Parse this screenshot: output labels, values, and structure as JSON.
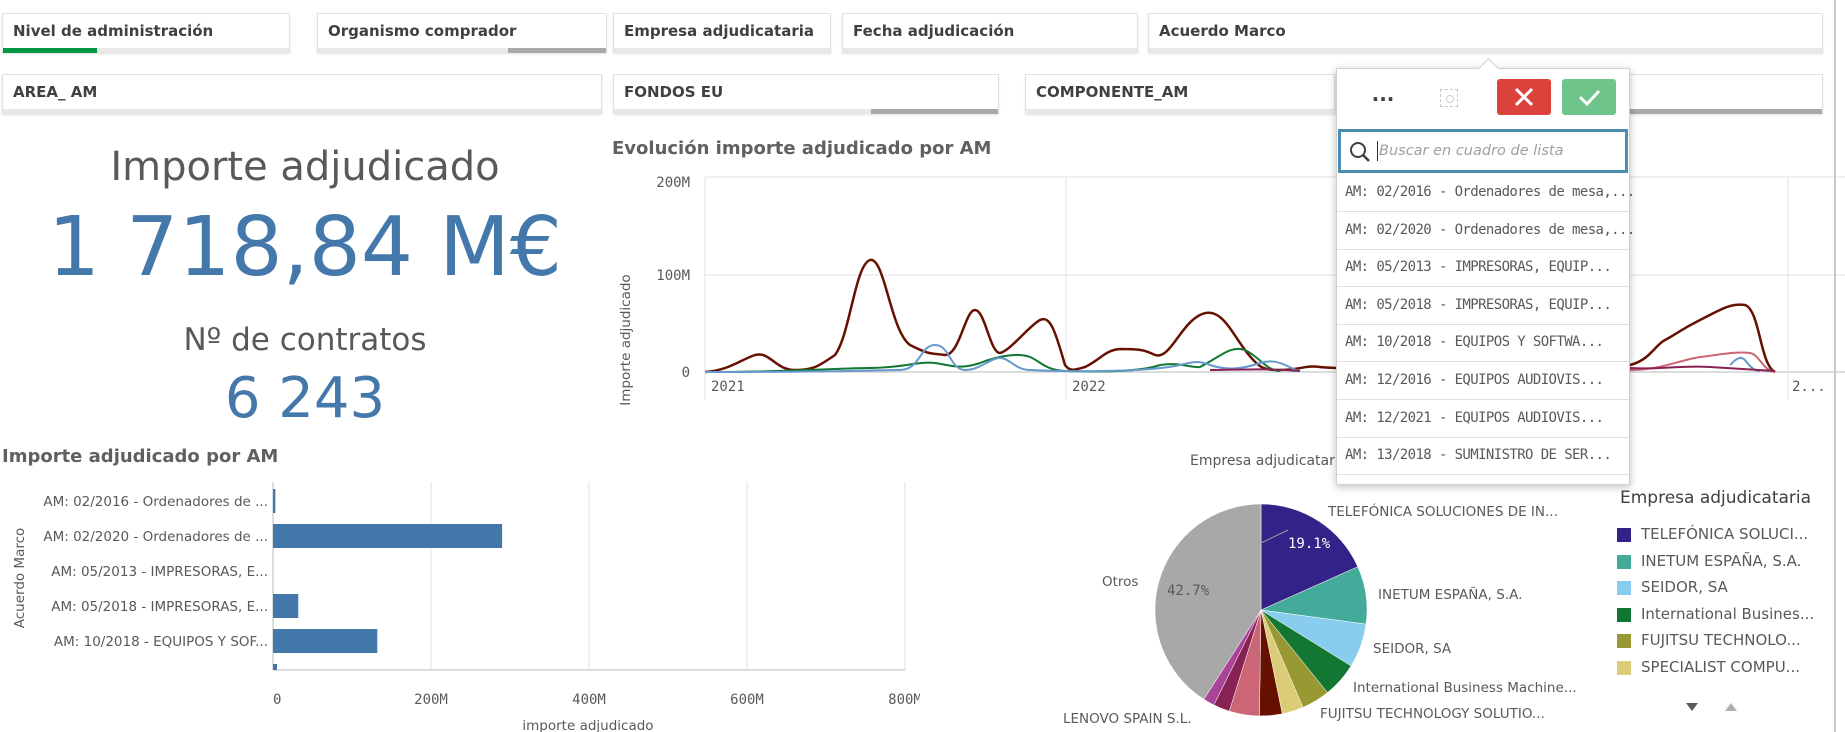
{
  "filters_row1": [
    {
      "label": "Nivel de administración",
      "green": 0.33,
      "gray": 0.0
    },
    {
      "label": "Organismo comprador",
      "green": 0.0,
      "gray": 0.34
    },
    {
      "label": "Empresa adjudicataria",
      "green": 0.0,
      "gray": 0.0
    },
    {
      "label": "Fecha adjudicación",
      "green": 0.0,
      "gray": 0.0
    },
    {
      "label": "Acuerdo Marco",
      "green": 0.0,
      "gray": 0.0
    }
  ],
  "filters_row2": [
    {
      "label": "AREA_ AM",
      "green": 0.0,
      "gray": 0.0
    },
    {
      "label": "FONDOS EU",
      "green": 0.0,
      "gray": 0.33
    },
    {
      "label": "COMPONENTE_AM",
      "green": 0.0,
      "gray": 0.0
    },
    {
      "label": "",
      "green": 0.0,
      "gray": 0.48
    }
  ],
  "kpis": {
    "importe_label": "Importe adjudicado",
    "importe_value": "1 718,84 M€",
    "contratos_label": "Nº de contratos",
    "contratos_value": "6 243"
  },
  "line_chart": {
    "title": "Evolución importe adjudicado por AM",
    "ylabel": "Importe adjudicado",
    "yticks": [
      "200M",
      "100M",
      "0"
    ],
    "xticks": [
      "2021",
      "2022",
      "2..."
    ]
  },
  "bar_chart": {
    "title": "Importe adjudicado por AM",
    "ylabel": "Acuerdo Marco",
    "xlabel": "importe adjudicado",
    "xticks": [
      "0",
      "200M",
      "400M",
      "600M",
      "800M"
    ]
  },
  "pie_chart": {
    "title": "Empresa adjudicataria",
    "labels": {
      "telefonica": "TELEFÓNICA SOLUCIONES DE IN...",
      "inetum": "INETUM ESPAÑA, S.A.",
      "seidor": "SEIDOR, SA",
      "ibm": "International Business Machine...",
      "fujitsu": "FUJITSU TECHNOLOGY SOLUTIO...",
      "lenovo": "LENOVO SPAIN S.L.",
      "otros": "Otros"
    },
    "pct_telefonica": "19.1%",
    "pct_otros": "42.7%",
    "legend_title": "Empresa adjudicataria",
    "legend": [
      {
        "label": "TELEFÓNICA SOLUCI...",
        "color": "#332288"
      },
      {
        "label": "INETUM ESPAÑA, S.A.",
        "color": "#44aa99"
      },
      {
        "label": "SEIDOR, SA",
        "color": "#88ccee"
      },
      {
        "label": "International Busines...",
        "color": "#117733"
      },
      {
        "label": "FUJITSU TECHNOLO...",
        "color": "#999933"
      },
      {
        "label": "SPECIALIST COMPU...",
        "color": "#ddcc77"
      }
    ]
  },
  "popup": {
    "more": "...",
    "search_placeholder": "Buscar en cuadro de lista",
    "items": [
      "AM: 02/2016 - Ordenadores de mesa,...",
      "AM: 02/2020 - Ordenadores de mesa,...",
      "AM: 05/2013 - IMPRESORAS, EQUIP...",
      "AM: 05/2018 - IMPRESORAS, EQUIP...",
      "AM: 10/2018 - EQUIPOS Y SOFTWA...",
      "AM: 12/2016 - EQUIPOS AUDIOVIS...",
      "AM: 12/2021 - EQUIPOS AUDIOVIS...",
      "AM: 13/2018 - SUMINISTRO DE SER..."
    ]
  },
  "chart_data": [
    {
      "type": "line",
      "title": "Evolución importe adjudicado por AM",
      "ylabel": "Importe adjudicado",
      "ylim": [
        0,
        200
      ],
      "x": [
        "2021",
        "2022"
      ]
    },
    {
      "type": "bar",
      "title": "Importe adjudicado por AM",
      "ylabel": "Acuerdo Marco",
      "xlabel": "importe adjudicado",
      "xlim": [
        0,
        800
      ],
      "categories": [
        "AM: 02/2016 - Ordenadores de ...",
        "AM: 02/2020 - Ordenadores de ...",
        "AM: 05/2013 - IMPRESORAS, E...",
        "AM: 05/2018 - IMPRESORAS, E...",
        "AM: 10/2018 - EQUIPOS Y SOF..."
      ],
      "values": [
        3,
        290,
        0,
        32,
        132
      ],
      "color": "#4477aa"
    },
    {
      "type": "pie",
      "title": "Empresa adjudicataria",
      "categories": [
        "TELEFÓNICA SOLUCIONES DE IN...",
        "INETUM ESPAÑA, S.A.",
        "SEIDOR, SA",
        "International Business Machine...",
        "FUJITSU TECHNOLOGY SOLUTIO...",
        "SPECIALIST COMPU...",
        "LENOVO SPAIN S.L.",
        "",
        "",
        "",
        "Otros"
      ],
      "values": [
        19.1,
        9.2,
        7.0,
        5.6,
        4.5,
        3.4,
        3.6,
        4.8,
        2.6,
        1.8,
        42.7
      ],
      "colors": [
        "#332288",
        "#44aa99",
        "#88ccee",
        "#117733",
        "#999933",
        "#ddcc77",
        "#661100",
        "#cc6677",
        "#882255",
        "#aa4499",
        "#a8a8a8"
      ]
    }
  ]
}
